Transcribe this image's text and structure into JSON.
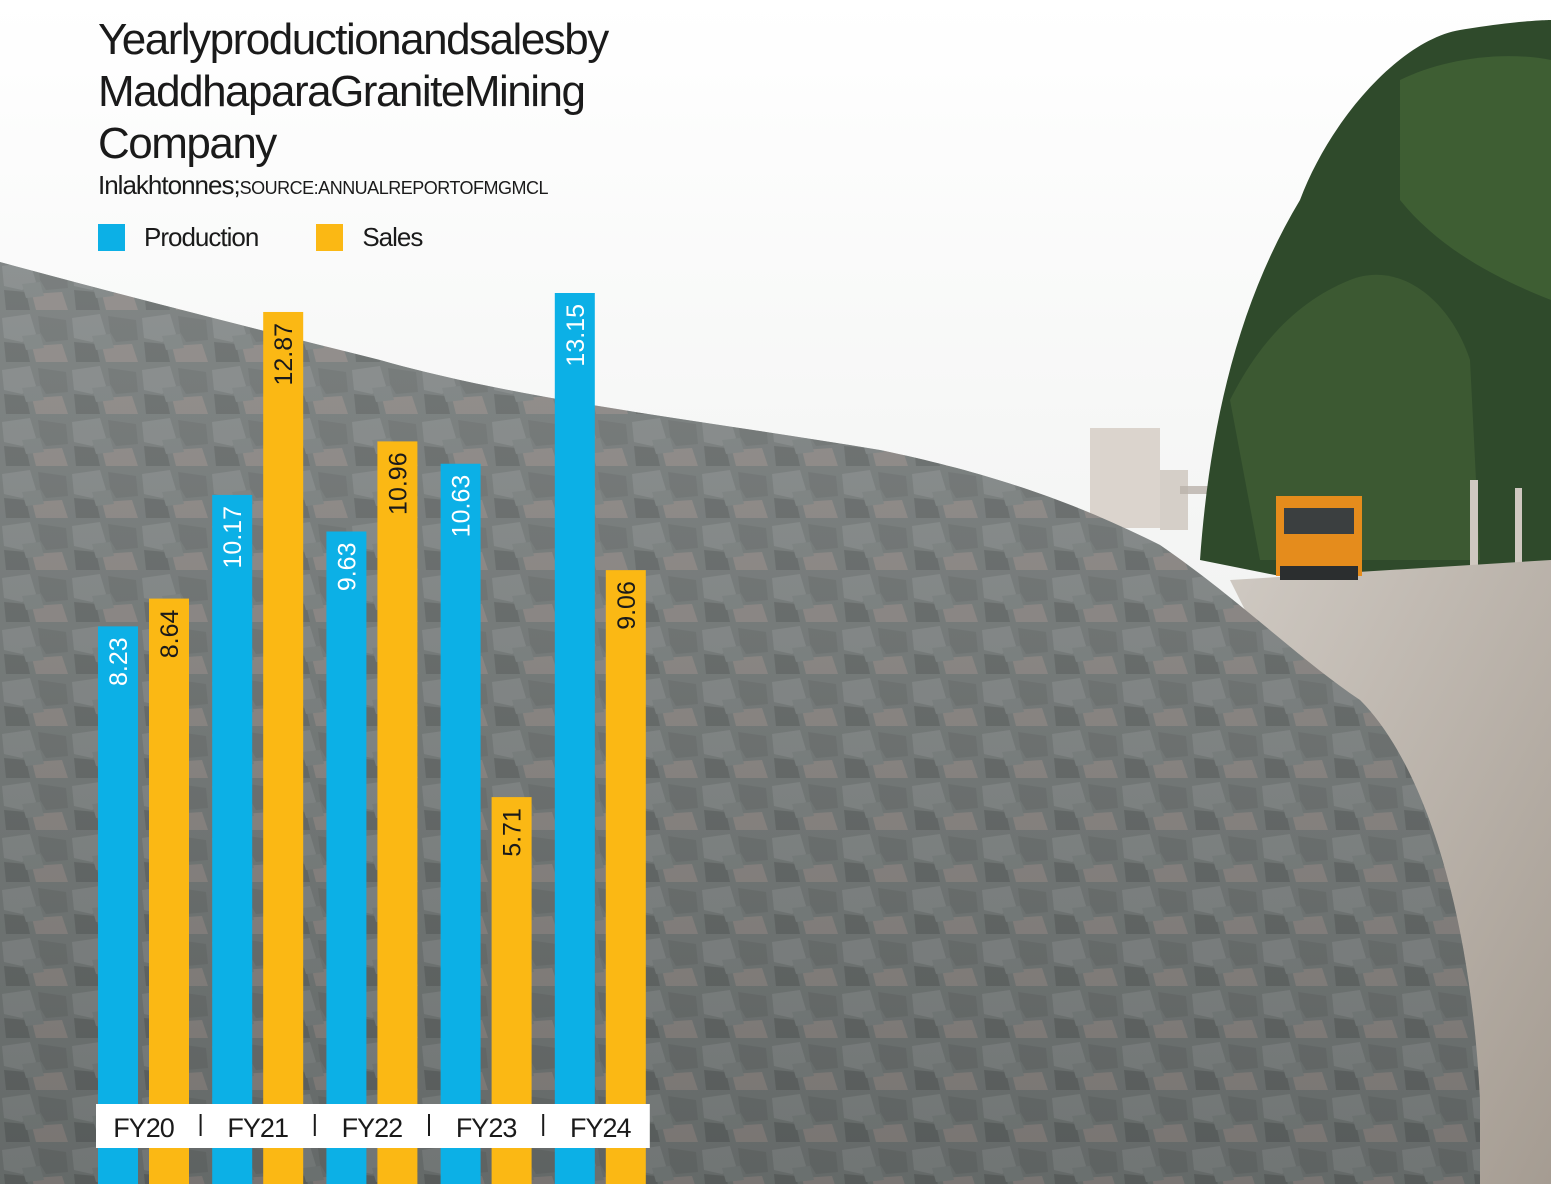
{
  "colors": {
    "production": "#0cb0e6",
    "sales": "#fbb814",
    "axis_band": "#ffffff",
    "text": "#1a1a1a"
  },
  "header": {
    "title_lines": [
      "Yearlyproductionandsalesby",
      "MaddhaparaGraniteMining",
      "Company"
    ],
    "unit": "Inlakhtonnes;",
    "source": "SOURCE:ANNUALREPORTOFMGMCL"
  },
  "chart_data": {
    "type": "bar",
    "title": "Yearlyproductionandsalesby MaddhaparaGraniteMining Company",
    "subtitle": "Inlakhtonnes;SOURCE:ANNUALREPORTOFMGMCL",
    "categories": [
      "FY20",
      "FY21",
      "FY22",
      "FY23",
      "FY24"
    ],
    "series": [
      {
        "name": "Production",
        "values": [
          8.23,
          10.17,
          9.63,
          10.63,
          13.15
        ]
      },
      {
        "name": "Sales",
        "values": [
          8.64,
          12.87,
          10.96,
          5.71,
          9.06
        ]
      }
    ],
    "value_labels": {
      "Production": [
        "8.23",
        "10.17",
        "9.63",
        "10.63",
        "13.15"
      ],
      "Sales": [
        "8.64",
        "12.87",
        "10.96",
        "5.71",
        "9.06"
      ]
    },
    "legend": "top-left",
    "grid": false,
    "ylim": [
      0,
      13.15
    ]
  }
}
